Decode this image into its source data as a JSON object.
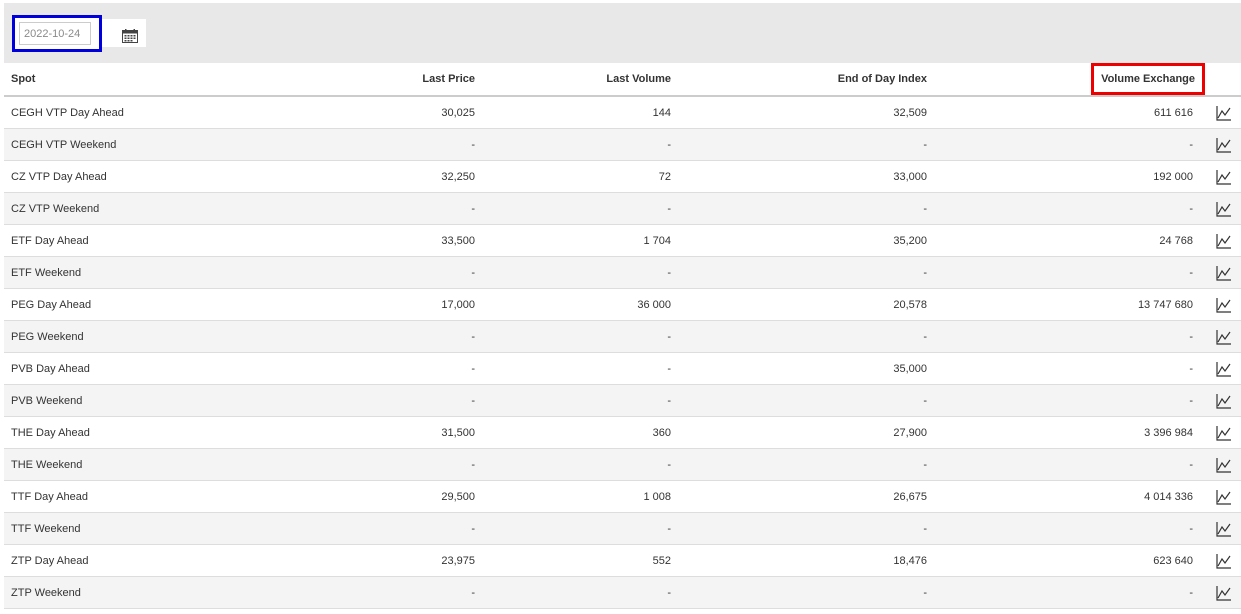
{
  "date_picker": {
    "value": "2022-10-24",
    "icon": "calendar-icon"
  },
  "table": {
    "headers": {
      "spot": "Spot",
      "last_price": "Last Price",
      "last_volume": "Last Volume",
      "eod_index": "End of Day Index",
      "volume_exchange": "Volume Exchange"
    },
    "rows": [
      {
        "spot": "CEGH VTP Day Ahead",
        "last_price": "30,025",
        "last_volume": "144",
        "eod_index": "32,509",
        "volume_exchange": "611 616"
      },
      {
        "spot": "CEGH VTP Weekend",
        "last_price": "-",
        "last_volume": "-",
        "eod_index": "-",
        "volume_exchange": "-"
      },
      {
        "spot": "CZ VTP Day Ahead",
        "last_price": "32,250",
        "last_volume": "72",
        "eod_index": "33,000",
        "volume_exchange": "192 000"
      },
      {
        "spot": "CZ VTP Weekend",
        "last_price": "-",
        "last_volume": "-",
        "eod_index": "-",
        "volume_exchange": "-"
      },
      {
        "spot": "ETF Day Ahead",
        "last_price": "33,500",
        "last_volume": "1 704",
        "eod_index": "35,200",
        "volume_exchange": "24 768"
      },
      {
        "spot": "ETF Weekend",
        "last_price": "-",
        "last_volume": "-",
        "eod_index": "-",
        "volume_exchange": "-"
      },
      {
        "spot": "PEG Day Ahead",
        "last_price": "17,000",
        "last_volume": "36 000",
        "eod_index": "20,578",
        "volume_exchange": "13 747 680"
      },
      {
        "spot": "PEG Weekend",
        "last_price": "-",
        "last_volume": "-",
        "eod_index": "-",
        "volume_exchange": "-"
      },
      {
        "spot": "PVB Day Ahead",
        "last_price": "-",
        "last_volume": "-",
        "eod_index": "35,000",
        "volume_exchange": "-"
      },
      {
        "spot": "PVB Weekend",
        "last_price": "-",
        "last_volume": "-",
        "eod_index": "-",
        "volume_exchange": "-"
      },
      {
        "spot": "THE Day Ahead",
        "last_price": "31,500",
        "last_volume": "360",
        "eod_index": "27,900",
        "volume_exchange": "3 396 984"
      },
      {
        "spot": "THE Weekend",
        "last_price": "-",
        "last_volume": "-",
        "eod_index": "-",
        "volume_exchange": "-"
      },
      {
        "spot": "TTF Day Ahead",
        "last_price": "29,500",
        "last_volume": "1 008",
        "eod_index": "26,675",
        "volume_exchange": "4 014 336"
      },
      {
        "spot": "TTF Weekend",
        "last_price": "-",
        "last_volume": "-",
        "eod_index": "-",
        "volume_exchange": "-"
      },
      {
        "spot": "ZTP Day Ahead",
        "last_price": "23,975",
        "last_volume": "552",
        "eod_index": "18,476",
        "volume_exchange": "623 640"
      },
      {
        "spot": "ZTP Weekend",
        "last_price": "-",
        "last_volume": "-",
        "eod_index": "-",
        "volume_exchange": "-"
      }
    ],
    "row_icon": "chart-icon"
  },
  "colors": {
    "date_highlight": "#0000dd",
    "header_highlight": "#ee0000",
    "toolbar_bg": "#e8e8e8",
    "stripe_bg": "#f4f4f4"
  }
}
